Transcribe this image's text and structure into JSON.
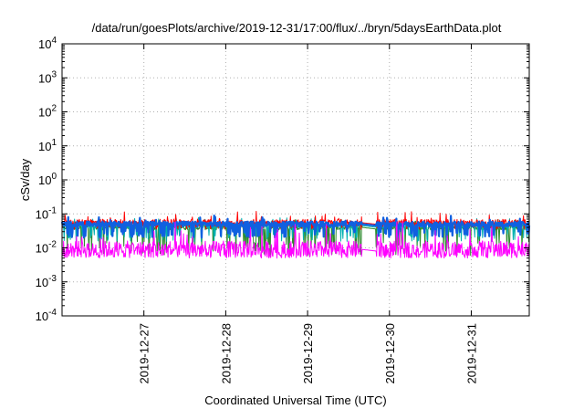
{
  "chart_data": {
    "type": "line",
    "title": "/data/run/goesPlots/archive/2019-12-31/17:00/flux/../bryn/5daysEarthData.plot",
    "xlabel": "Coordinated Universal Time (UTC)",
    "ylabel": "cSv/day",
    "yscale": "log",
    "ylim": [
      0.0001,
      10000
    ],
    "xlim": [
      "2019-12-26T00:00",
      "2019-12-31T17:00"
    ],
    "grid": true,
    "legend": "none",
    "y_tick_labels": [
      {
        "base": "10",
        "exp": "-4"
      },
      {
        "base": "10",
        "exp": "-3"
      },
      {
        "base": "10",
        "exp": "-2"
      },
      {
        "base": "10",
        "exp": "-1"
      },
      {
        "base": "10",
        "exp": "0"
      },
      {
        "base": "10",
        "exp": "1"
      },
      {
        "base": "10",
        "exp": "2"
      },
      {
        "base": "10",
        "exp": "3"
      },
      {
        "base": "10",
        "exp": "4"
      }
    ],
    "x_tick_labels": [
      "2019-12-27",
      "2019-12-28",
      "2019-12-29",
      "2019-12-30",
      "2019-12-31"
    ],
    "data_gap": [
      "2019-12-29T16:00",
      "2019-12-29T20:00"
    ],
    "series": [
      {
        "color": "#ff0000",
        "baseline": 0.055,
        "low": 0.035,
        "high": 0.12
      },
      {
        "color": "#ff00ff",
        "baseline": 0.009,
        "low": 0.005,
        "high": 0.06
      },
      {
        "color": "#00b0b0",
        "baseline": 0.045,
        "low": 0.015,
        "high": 0.08
      },
      {
        "color": "#2d8a2d",
        "baseline": 0.04,
        "low": 0.006,
        "high": 0.07
      },
      {
        "color": "#1060e0",
        "baseline": 0.05,
        "low": 0.02,
        "high": 0.09
      }
    ]
  }
}
